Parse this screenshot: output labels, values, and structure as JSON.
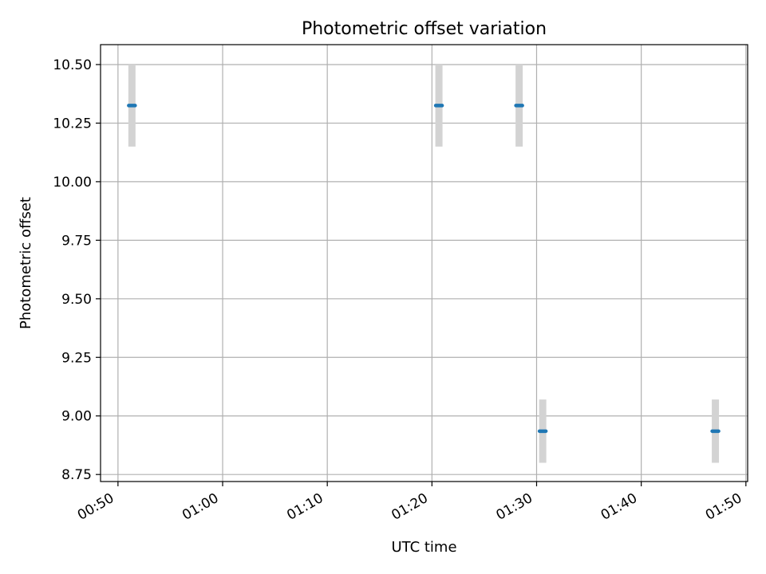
{
  "chart_data": {
    "type": "scatter",
    "title": "Photometric offset variation",
    "xlabel": "UTC time",
    "ylabel": "Photometric offset",
    "grid": true,
    "legend": "none",
    "xlim": [
      "00:48:20",
      "01:50:10"
    ],
    "ylim": [
      8.72,
      10.585
    ],
    "x_ticks": [
      "00:50",
      "01:00",
      "01:10",
      "01:20",
      "01:30",
      "01:40",
      "01:50"
    ],
    "y_ticks": [
      "8.75",
      "9.00",
      "9.25",
      "9.50",
      "9.75",
      "10.00",
      "10.25",
      "10.50"
    ],
    "points": [
      {
        "x": "00:51:20",
        "y": 10.325,
        "err_low": 10.15,
        "err_high": 10.5
      },
      {
        "x": "01:20:40",
        "y": 10.325,
        "err_low": 10.15,
        "err_high": 10.5
      },
      {
        "x": "01:28:20",
        "y": 10.325,
        "err_low": 10.15,
        "err_high": 10.5
      },
      {
        "x": "01:30:35",
        "y": 8.935,
        "err_low": 8.8,
        "err_high": 9.07
      },
      {
        "x": "01:47:05",
        "y": 8.935,
        "err_low": 8.8,
        "err_high": 9.07
      }
    ],
    "colors": {
      "point": "#1f77b4",
      "errorbar": "#d3d3d3",
      "grid": "#b0b0b0",
      "axis": "#000000"
    }
  }
}
